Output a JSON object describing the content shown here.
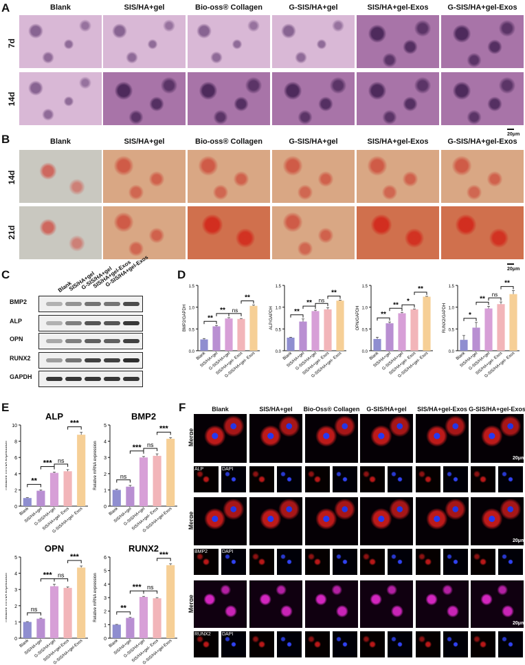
{
  "panel_letters": {
    "A": "A",
    "B": "B",
    "C": "C",
    "D": "D",
    "E": "E",
    "F": "F"
  },
  "group_labels_A": [
    "Blank",
    "SIS/HA+gel",
    "Bio-oss® Collagen",
    "G-SIS/HA+gel",
    "SIS/HA+gel-Exos",
    "G-SIS/HA+gel-Exos"
  ],
  "group_labels_F": [
    "Blank",
    "SIS/HA+gel",
    "Bio-Oss® Collagen",
    "G-SIS/HA+gel",
    "SIS/HA+gel-Exos",
    "G-SIS/HA+gel-Exos"
  ],
  "panel_A": {
    "rows": [
      "7d",
      "14d"
    ],
    "scale_bar": "20μm"
  },
  "panel_B": {
    "rows": [
      "14d",
      "21d"
    ],
    "scale_bar": "20μm"
  },
  "panel_C": {
    "lanes": [
      "Blank",
      "SIS/HA+gel",
      "G-SIS/HA+gel",
      "SIS/HA+gel-Exos",
      "G-SIS/HA+gel-Exos"
    ],
    "proteins": [
      "BMP2",
      "ALP",
      "OPN",
      "RUNX2",
      "GAPDH"
    ]
  },
  "panel_F": {
    "merge_label": "Merge",
    "dapi_label": "DAPI",
    "markers": [
      "ALP",
      "BMP2",
      "RUNX2"
    ],
    "scale_bar": "20μm"
  },
  "colors": {
    "bar_colors": [
      "#8f8ed0",
      "#b98fd2",
      "#d79fd7",
      "#f2b5b9",
      "#f6cf96"
    ]
  },
  "chart_data": [
    {
      "type": "bar",
      "panel": "D",
      "ylabel": "BMP2/GAPDH",
      "categories": [
        "Blank",
        "SIS/HA+gel",
        "G-SIS/HA+gel",
        "SIS/HA+gel- Exos",
        "G-SIS/HA+gel- Exos"
      ],
      "values": [
        0.26,
        0.56,
        0.74,
        0.73,
        1.03
      ],
      "errors": [
        0.02,
        0.02,
        0.02,
        0.01,
        0.02
      ],
      "ylim": [
        0,
        1.5
      ],
      "yticks": [
        "0.0",
        "0.5",
        "1.0",
        "1.5"
      ],
      "sig": [
        {
          "from": 0,
          "to": 1,
          "label": "**"
        },
        {
          "from": 1,
          "to": 2,
          "label": "**"
        },
        {
          "from": 2,
          "to": 3,
          "label": "ns"
        },
        {
          "from": 3,
          "to": 4,
          "label": "**"
        }
      ]
    },
    {
      "type": "bar",
      "panel": "D",
      "ylabel": "ALP/GAPDH",
      "categories": [
        "Blank",
        "SIS/HA+gel",
        "G-SIS/HA+gel",
        "SIS/HA+gel- Exos",
        "G-SIS/HA+gel- Exos"
      ],
      "values": [
        0.3,
        0.67,
        0.91,
        0.95,
        1.15
      ],
      "errors": [
        0.01,
        0.06,
        0.02,
        0.04,
        0.01
      ],
      "ylim": [
        0,
        1.5
      ],
      "yticks": [
        "0.0",
        "0.5",
        "1.0",
        "1.5"
      ],
      "sig": [
        {
          "from": 0,
          "to": 1,
          "label": "**"
        },
        {
          "from": 1,
          "to": 2,
          "label": "**"
        },
        {
          "from": 2,
          "to": 3,
          "label": "ns"
        },
        {
          "from": 3,
          "to": 4,
          "label": "**"
        }
      ]
    },
    {
      "type": "bar",
      "panel": "D",
      "ylabel": "OPN/GAPDH",
      "categories": [
        "Blank",
        "SIS/HA+gel",
        "G-SIS/HA+gel",
        "SIS/HA+gel- Exos",
        "G-SIS/HA+gel- Exos"
      ],
      "values": [
        0.27,
        0.63,
        0.86,
        0.95,
        1.24
      ],
      "errors": [
        0.04,
        0.03,
        0.02,
        0.01,
        0.01
      ],
      "ylim": [
        0,
        1.5
      ],
      "yticks": [
        "0.0",
        "0.5",
        "1.0",
        "1.5"
      ],
      "sig": [
        {
          "from": 0,
          "to": 1,
          "label": "**"
        },
        {
          "from": 1,
          "to": 2,
          "label": "**"
        },
        {
          "from": 2,
          "to": 3,
          "label": "*"
        },
        {
          "from": 3,
          "to": 4,
          "label": "**"
        }
      ]
    },
    {
      "type": "bar",
      "panel": "D",
      "ylabel": "RUNX2/GAPDH",
      "categories": [
        "Blank",
        "SIS/HA+gel",
        "G-SIS/HA+gel",
        "SIS/HA+gel- Exos",
        "G-SIS/HA+gel- Exos"
      ],
      "values": [
        0.25,
        0.53,
        0.97,
        1.07,
        1.3
      ],
      "errors": [
        0.1,
        0.12,
        0.05,
        0.05,
        0.08
      ],
      "ylim": [
        0,
        1.5
      ],
      "yticks": [
        "0.0",
        "0.5",
        "1.0",
        "1.5"
      ],
      "sig": [
        {
          "from": 0,
          "to": 1,
          "label": "*"
        },
        {
          "from": 1,
          "to": 2,
          "label": "**"
        },
        {
          "from": 2,
          "to": 3,
          "label": "ns"
        },
        {
          "from": 3,
          "to": 4,
          "label": "**"
        }
      ]
    },
    {
      "type": "bar",
      "panel": "E",
      "title": "ALP",
      "ylabel": "Relative mRNA expression",
      "categories": [
        "Blank",
        "SIS/HA+gel",
        "G-SIS/HA+gel",
        "SIS/HA+gel- Exos",
        "G-SIS/HA+gel- Exos"
      ],
      "values": [
        1.0,
        1.9,
        4.1,
        4.3,
        8.8
      ],
      "errors": [
        0.05,
        0.1,
        0.1,
        0.2,
        0.3
      ],
      "ylim": [
        0,
        10
      ],
      "yticks": [
        "0",
        "2",
        "4",
        "6",
        "8",
        "10"
      ],
      "sig": [
        {
          "from": 0,
          "to": 1,
          "label": "**"
        },
        {
          "from": 1,
          "to": 2,
          "label": "***"
        },
        {
          "from": 2,
          "to": 3,
          "label": "ns"
        },
        {
          "from": 3,
          "to": 4,
          "label": "***"
        }
      ]
    },
    {
      "type": "bar",
      "panel": "E",
      "title": "BMP2",
      "ylabel": "Relative mRNA expression",
      "categories": [
        "Blank",
        "SIS/HA+gel",
        "G-SIS/HA+gel",
        "SIS/HA+gel- Exos",
        "G-SIS/HA+gel-Exos"
      ],
      "values": [
        1.0,
        1.2,
        3.0,
        3.1,
        4.15
      ],
      "errors": [
        0.05,
        0.08,
        0.06,
        0.12,
        0.07
      ],
      "ylim": [
        0,
        5
      ],
      "yticks": [
        "0",
        "1",
        "2",
        "3",
        "4",
        "5"
      ],
      "sig": [
        {
          "from": 0,
          "to": 1,
          "label": "ns"
        },
        {
          "from": 1,
          "to": 2,
          "label": "***"
        },
        {
          "from": 2,
          "to": 3,
          "label": "ns"
        },
        {
          "from": 3,
          "to": 4,
          "label": "***"
        }
      ]
    },
    {
      "type": "bar",
      "panel": "E",
      "title": "OPN",
      "ylabel": "Relative mRNA expression",
      "categories": [
        "Blank",
        "SIS/HA+gel",
        "G-SIS/HA+gel",
        "SIS/HA+gel-Exos",
        "G-SIS/HA+gel-Exos"
      ],
      "values": [
        1.0,
        1.2,
        3.2,
        3.1,
        4.35
      ],
      "errors": [
        0.02,
        0.03,
        0.12,
        0.06,
        0.1
      ],
      "ylim": [
        0,
        5
      ],
      "yticks": [
        "0",
        "1",
        "2",
        "3",
        "4",
        "5"
      ],
      "sig": [
        {
          "from": 0,
          "to": 1,
          "label": "ns"
        },
        {
          "from": 1,
          "to": 2,
          "label": "***"
        },
        {
          "from": 2,
          "to": 3,
          "label": "ns"
        },
        {
          "from": 3,
          "to": 4,
          "label": "***"
        }
      ]
    },
    {
      "type": "bar",
      "panel": "E",
      "title": "RUNX2",
      "ylabel": "Relative mRNA expression",
      "categories": [
        "Blank",
        "SIS/HA+gel",
        "G-SIS/HA+gel",
        "SIS/HA+gel- Exos",
        "G-SIS/HA+gel-Exos"
      ],
      "values": [
        1.0,
        1.5,
        3.05,
        2.95,
        5.4
      ],
      "errors": [
        0.02,
        0.04,
        0.04,
        0.05,
        0.1
      ],
      "ylim": [
        0,
        6
      ],
      "yticks": [
        "0",
        "1",
        "2",
        "3",
        "4",
        "5",
        "6"
      ],
      "sig": [
        {
          "from": 0,
          "to": 1,
          "label": "**"
        },
        {
          "from": 1,
          "to": 2,
          "label": "***"
        },
        {
          "from": 2,
          "to": 3,
          "label": "ns"
        },
        {
          "from": 3,
          "to": 4,
          "label": "***"
        }
      ]
    }
  ]
}
